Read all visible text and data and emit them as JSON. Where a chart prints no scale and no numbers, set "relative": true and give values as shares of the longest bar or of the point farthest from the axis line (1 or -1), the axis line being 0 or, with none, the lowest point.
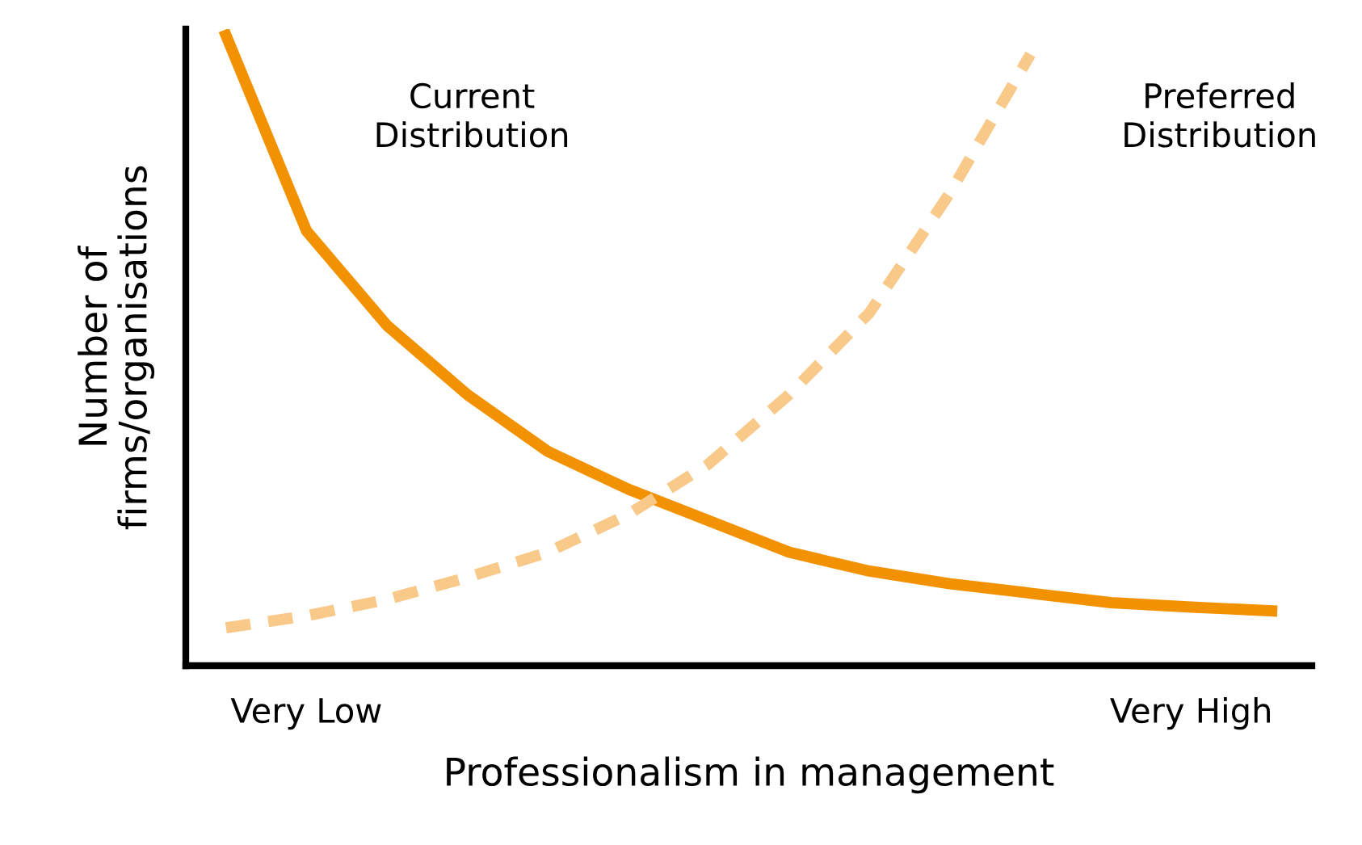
{
  "chart_data": {
    "type": "line",
    "relative": true,
    "xlabel": "Professionalism in management",
    "ylabel": "Number of\nfirms/organisations",
    "categories": [
      null,
      "Very Low",
      null,
      null,
      null,
      null,
      null,
      null,
      null,
      null,
      null,
      null,
      "Very High",
      null
    ],
    "grid": false,
    "legend": false,
    "marker": "none",
    "series": [
      {
        "name": "Current\nDistribution",
        "color": "#f39200",
        "line_style": "solid",
        "values": [
          1.0,
          0.69,
          0.54,
          0.43,
          0.34,
          0.28,
          0.23,
          0.18,
          0.15,
          0.13,
          0.115,
          0.1,
          0.093,
          0.087
        ]
      },
      {
        "name": "Preferred\nDistribution",
        "color": "#f9c98a",
        "line_style": "dashed",
        "values": [
          0.06,
          0.079,
          0.105,
          0.14,
          0.18,
          0.24,
          0.32,
          0.43,
          0.56,
          0.75,
          0.97,
          null,
          null,
          null
        ]
      }
    ]
  }
}
